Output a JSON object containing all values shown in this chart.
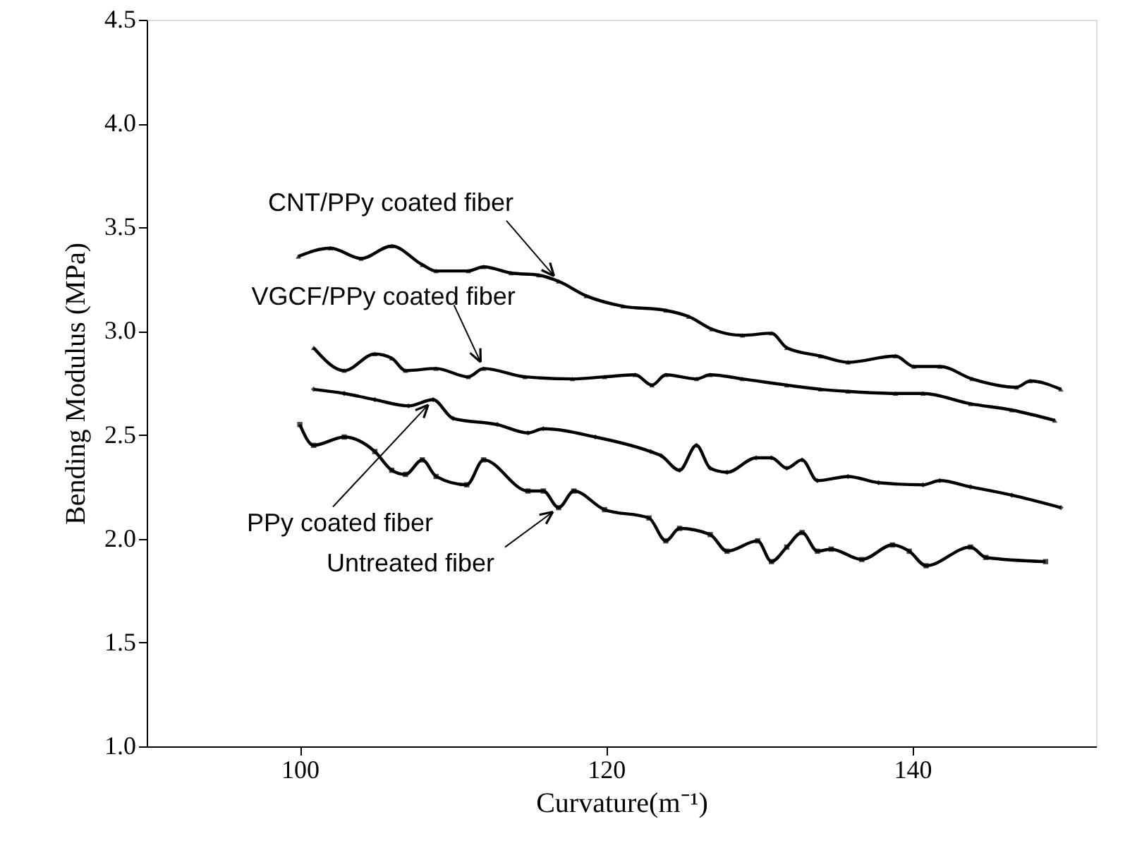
{
  "chart_data": {
    "type": "line",
    "xlabel": "Curvature(m⁻¹)",
    "ylabel": "Bending Modulus (MPa)",
    "xlim": [
      90,
      152
    ],
    "xticks": [
      100,
      120,
      140
    ],
    "ylim": [
      1.0,
      4.5
    ],
    "yticks": [
      {
        "value": 1.0,
        "label": "1.0"
      },
      {
        "value": 1.5,
        "label": "1.5"
      },
      {
        "value": 2.0,
        "label": "2.0"
      },
      {
        "value": 2.5,
        "label": "2.5"
      },
      {
        "value": 3.0,
        "label": "3.0"
      },
      {
        "value": 3.5,
        "label": "3.5"
      },
      {
        "value": 4.0,
        "label": "4.0"
      },
      {
        "value": 4.5,
        "label": "4.5"
      }
    ],
    "grid": false,
    "line_style": "solid",
    "series": [
      {
        "name": "CNT/PPy coated fiber",
        "color": "#000000",
        "marker": "triangle",
        "x": [
          99.9,
          102.0,
          104.0,
          106.0,
          108.0,
          108.9,
          111.0,
          112.0,
          113.8,
          115.6,
          116.9,
          118.7,
          121.1,
          123.9,
          125.4,
          126.9,
          128.9,
          130.8,
          131.8,
          134.0,
          135.8,
          138.9,
          140.1,
          141.8,
          143.9,
          146.8,
          147.7,
          149.7
        ],
        "values": [
          3.36,
          3.4,
          3.35,
          3.41,
          3.32,
          3.29,
          3.29,
          3.31,
          3.28,
          3.27,
          3.24,
          3.17,
          3.12,
          3.1,
          3.07,
          3.01,
          2.98,
          2.99,
          2.92,
          2.88,
          2.85,
          2.88,
          2.83,
          2.83,
          2.77,
          2.73,
          2.76,
          2.72
        ]
      },
      {
        "name": "VGCF/PPy coated fiber",
        "color": "#000000",
        "marker": "triangle",
        "x": [
          100.9,
          102.9,
          104.9,
          106.0,
          106.9,
          108.9,
          111.0,
          112.0,
          114.7,
          117.8,
          119.9,
          121.9,
          123.0,
          123.9,
          125.9,
          126.8,
          128.9,
          131.8,
          134.0,
          135.8,
          138.9,
          140.7,
          143.8,
          146.5,
          149.3
        ],
        "values": [
          2.92,
          2.81,
          2.89,
          2.87,
          2.81,
          2.82,
          2.78,
          2.82,
          2.78,
          2.77,
          2.78,
          2.79,
          2.74,
          2.79,
          2.77,
          2.79,
          2.77,
          2.74,
          2.72,
          2.71,
          2.7,
          2.7,
          2.65,
          2.62,
          2.57
        ]
      },
      {
        "name": "PPy coated fiber",
        "color": "#000000",
        "marker": "diamond",
        "x": [
          100.9,
          102.9,
          104.9,
          107.1,
          108.7,
          110.0,
          112.9,
          114.9,
          115.9,
          119.3,
          122.9,
          123.6,
          124.8,
          125.9,
          126.8,
          127.9,
          129.8,
          130.8,
          131.8,
          132.8,
          133.8,
          135.8,
          137.8,
          140.7,
          141.8,
          143.8,
          146.5,
          149.7
        ],
        "values": [
          2.72,
          2.7,
          2.67,
          2.64,
          2.67,
          2.58,
          2.55,
          2.51,
          2.53,
          2.49,
          2.42,
          2.4,
          2.33,
          2.45,
          2.34,
          2.32,
          2.39,
          2.39,
          2.34,
          2.38,
          2.28,
          2.3,
          2.27,
          2.26,
          2.28,
          2.25,
          2.21,
          2.15
        ]
      },
      {
        "name": "Untreated fiber",
        "color": "#000000",
        "marker": "square",
        "x": [
          100.0,
          100.9,
          102.9,
          104.9,
          106.0,
          106.9,
          108.0,
          108.9,
          110.9,
          112.0,
          114.9,
          115.9,
          116.9,
          117.9,
          119.9,
          122.8,
          123.9,
          124.8,
          126.8,
          127.9,
          129.9,
          130.8,
          131.8,
          132.8,
          133.8,
          134.7,
          136.7,
          138.7,
          139.8,
          140.9,
          143.8,
          144.8,
          148.7
        ],
        "values": [
          2.55,
          2.45,
          2.49,
          2.42,
          2.33,
          2.31,
          2.38,
          2.3,
          2.26,
          2.38,
          2.23,
          2.23,
          2.15,
          2.23,
          2.14,
          2.1,
          1.99,
          2.05,
          2.02,
          1.94,
          1.99,
          1.89,
          1.96,
          2.03,
          1.94,
          1.95,
          1.9,
          1.97,
          1.94,
          1.87,
          1.96,
          1.91,
          1.89
        ]
      }
    ]
  }
}
